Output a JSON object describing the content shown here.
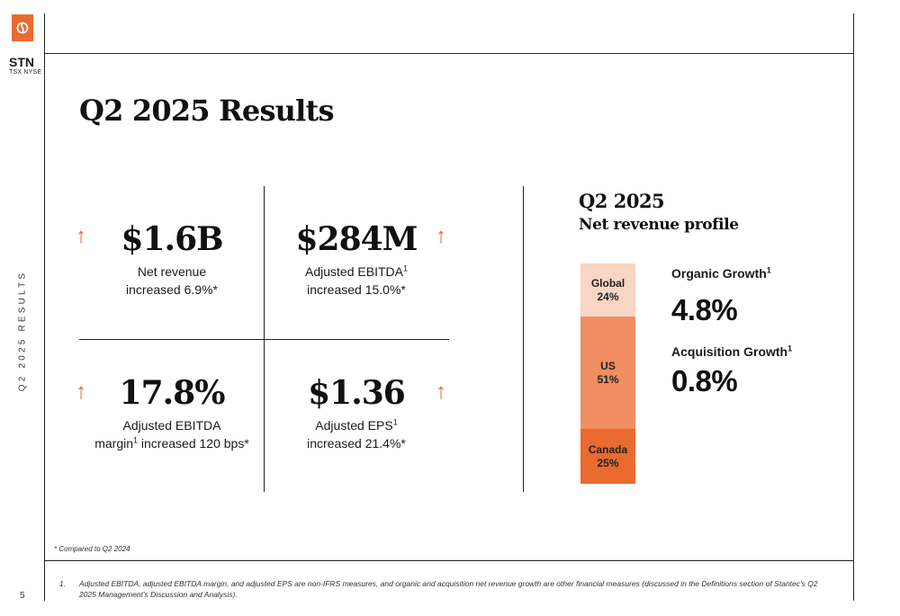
{
  "colors": {
    "accent": "#ea6a2f",
    "global": "#f9d5c3",
    "us": "#f08e62",
    "canada": "#ea6a2f"
  },
  "brand": {
    "logo_icon": "stantec-logo-icon",
    "ticker": "STN",
    "exchange": "TSX NYSE"
  },
  "sidebar": {
    "section_label": "Q2 2025 RESULTS",
    "page_number": "5"
  },
  "title": "Q2 2025 Results",
  "metrics": [
    {
      "value": "$1.6B",
      "label_line1": "Net revenue",
      "label_line2": "increased 6.9%*",
      "sup": "",
      "trend_icon": "arrow-up-icon",
      "arrow": "↑"
    },
    {
      "value": "$284M",
      "label_line1": "Adjusted EBITDA",
      "label_line2": "increased 15.0%*",
      "sup": "1",
      "trend_icon": "arrow-up-icon",
      "arrow": "↑"
    },
    {
      "value": "17.8%",
      "label_line1": "Adjusted EBITDA",
      "label_line2_pre": "margin",
      "sup": "1",
      "label_line2_post": " increased 120 bps*",
      "trend_icon": "arrow-up-icon",
      "arrow": "↑"
    },
    {
      "value": "$1.36",
      "label_line1": "Adjusted EPS",
      "label_line2": "increased 21.4%*",
      "sup": "1",
      "trend_icon": "arrow-up-icon",
      "arrow": "↑"
    }
  ],
  "profile": {
    "year": "Q2 2025",
    "title": "Net revenue profile",
    "segments": [
      {
        "name": "Global",
        "percent": "24%",
        "share": 24
      },
      {
        "name": "US",
        "percent": "51%",
        "share": 51
      },
      {
        "name": "Canada",
        "percent": "25%",
        "share": 25
      }
    ],
    "organic_label": "Organic Growth",
    "organic_sup": "1",
    "organic_value": "4.8%",
    "acquisition_label": "Acquisition Growth",
    "acquisition_sup": "1",
    "acquisition_value": "0.8%"
  },
  "footer": {
    "compared_note": "* Compared to Q2 2024",
    "footnote_number": "1.",
    "footnote_text": "Adjusted EBITDA, adjusted EBITDA margin, and adjusted EPS are non-IFRS measures, and organic and acquisition net revenue growth are other financial measures (discussed in the Definitions section of Stantec's Q2 2025 Management's Discussion and Analysis)."
  }
}
